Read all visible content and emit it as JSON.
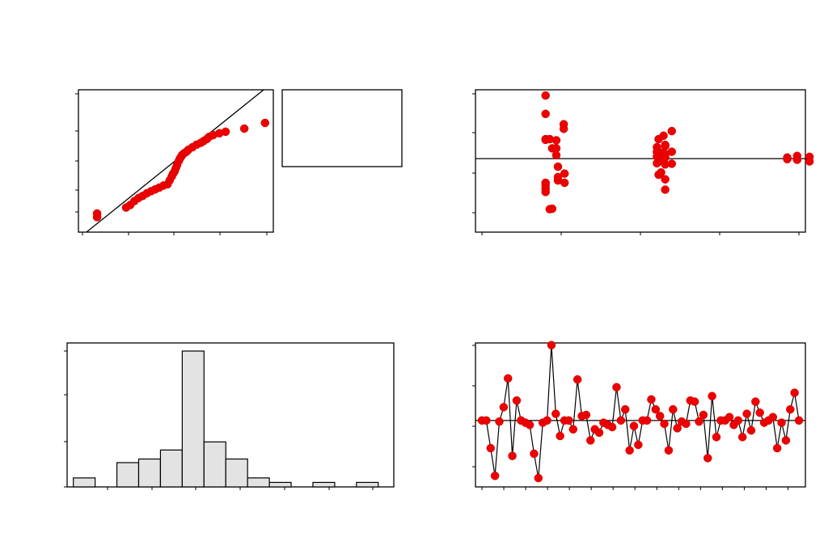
{
  "chart_data": [
    {
      "panel": "normal-probability-plot",
      "type": "scatter",
      "title": "",
      "xlabel": "",
      "ylabel": "",
      "xlim": [
        -2.4,
        2.3
      ],
      "ylim": [
        -2.5,
        3.0
      ],
      "reference_line": [
        [
          -2.4,
          -2.75
        ],
        [
          2.3,
          3.3
        ]
      ],
      "x": [
        -1.95,
        -1.95,
        -1.25,
        -1.15,
        -1.05,
        -0.95,
        -0.85,
        -0.75,
        -0.65,
        -0.55,
        -0.45,
        -0.35,
        -0.25,
        -0.2,
        -0.15,
        -0.12,
        -0.08,
        -0.05,
        -0.02,
        0.02,
        0.05,
        0.08,
        0.1,
        0.15,
        0.2,
        0.25,
        0.35,
        0.45,
        0.55,
        0.62,
        0.7,
        0.75,
        0.85,
        1.0,
        1.15,
        1.6,
        2.1
      ],
      "y": [
        -1.92,
        -1.78,
        -1.55,
        -1.45,
        -1.3,
        -1.18,
        -1.1,
        -1.0,
        -0.92,
        -0.85,
        -0.78,
        -0.7,
        -0.65,
        -0.5,
        -0.35,
        -0.25,
        -0.15,
        -0.02,
        0.1,
        0.25,
        0.35,
        0.42,
        0.48,
        0.55,
        0.6,
        0.68,
        0.78,
        0.88,
        0.95,
        1.02,
        1.1,
        1.18,
        1.25,
        1.32,
        1.38,
        1.5,
        1.72
      ]
    },
    {
      "panel": "residuals-vs-fits",
      "type": "scatter",
      "title": "",
      "xlabel": "",
      "ylabel": "",
      "xlim": [
        -0.5,
        3.5
      ],
      "ylim": [
        -3.2,
        3.0
      ],
      "reference_y": 0,
      "x": [
        0.35,
        0.35,
        0.35,
        0.35,
        0.35,
        0.35,
        0.35,
        0.35,
        0.4,
        0.4,
        0.43,
        0.43,
        0.48,
        0.48,
        0.48,
        0.5,
        0.5,
        0.5,
        0.57,
        0.57,
        0.58,
        0.58,
        1.7,
        1.7,
        1.7,
        1.7,
        1.72,
        1.72,
        1.75,
        1.75,
        1.75,
        1.78,
        1.8,
        1.8,
        1.8,
        1.8,
        1.8,
        1.8,
        1.8,
        1.88,
        1.88,
        1.88,
        3.28,
        3.28,
        3.4,
        3.4,
        3.55,
        3.55
      ],
      "y": [
        2.75,
        1.95,
        0.85,
        0.82,
        -1.05,
        -1.15,
        -1.3,
        -1.45,
        0.85,
        -2.2,
        0.45,
        -2.18,
        0.8,
        0.45,
        0.15,
        -0.35,
        -0.95,
        -0.8,
        1.5,
        1.3,
        -0.65,
        -1.05,
        0.5,
        0.3,
        0.1,
        -0.2,
        -0.7,
        0.85,
        0.25,
        -0.1,
        -0.6,
        1.0,
        0.6,
        0.55,
        0.2,
        0.05,
        -0.25,
        -0.9,
        -1.35,
        1.2,
        0.3,
        -0.22,
        0.05,
        -0.02,
        0.12,
        -0.05,
        0.08,
        -0.12
      ]
    },
    {
      "panel": "histogram-of-residuals",
      "type": "bar",
      "title": "",
      "xlabel": "",
      "ylabel": "",
      "xlim": [
        -2.2,
        3.05
      ],
      "ylim": [
        0,
        16
      ],
      "bin_start": -2.1,
      "bin_width": 0.35,
      "values": [
        1,
        0,
        2.7,
        3.1,
        4.1,
        15.1,
        5.0,
        3.1,
        1,
        0.5,
        0,
        0.5,
        0,
        0.5
      ]
    },
    {
      "panel": "residuals-vs-order",
      "type": "line",
      "title": "",
      "xlabel": "",
      "ylabel": "",
      "xlim": [
        0,
        60
      ],
      "ylim": [
        -3.0,
        3.5
      ],
      "reference_y": 0,
      "x_ticks": [
        1,
        5,
        9,
        13,
        17,
        21,
        25,
        29,
        33,
        37,
        41,
        45,
        49,
        53,
        57
      ],
      "y": [
        0,
        0,
        -1.25,
        -2.5,
        -0.05,
        0.6,
        1.9,
        -1.6,
        0.9,
        0,
        -0.1,
        -0.2,
        -1.5,
        -2.6,
        -0.1,
        0,
        3.4,
        0.3,
        -0.7,
        0,
        0,
        -0.4,
        1.85,
        0.2,
        0.25,
        -0.9,
        -0.4,
        -0.55,
        -0.1,
        -0.2,
        -0.3,
        1.5,
        0,
        0.5,
        -1.35,
        -0.25,
        -1.1,
        0,
        0,
        0.95,
        0.5,
        0.2,
        -0.15,
        -1.35,
        0.5,
        -0.35,
        -0.05,
        -0.15,
        0.9,
        0.85,
        -0.05,
        0.25,
        -1.7,
        1.1,
        -0.75,
        0,
        0,
        0.15,
        -0.2,
        0,
        -0.75,
        0.3,
        -0.45,
        0.85,
        0.35,
        -0.1,
        0,
        0.15,
        -1.25,
        -0.1,
        -0.9,
        0.5,
        1.25,
        0
      ]
    }
  ]
}
